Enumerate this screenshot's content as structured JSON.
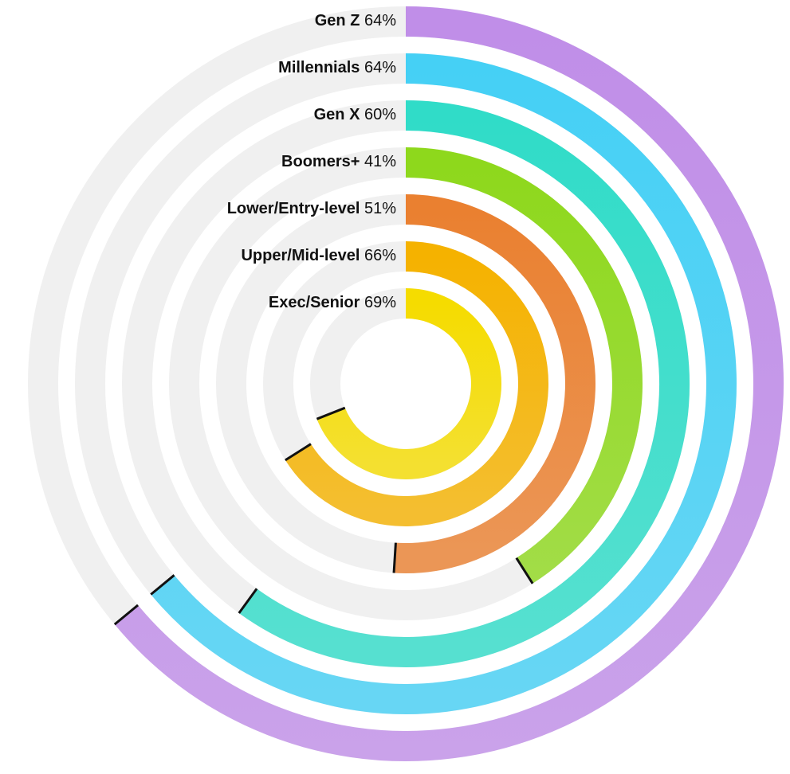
{
  "chart_data": {
    "type": "radial-bar",
    "categories": [
      "Gen Z",
      "Millennials",
      "Gen X",
      "Boomers+",
      "Lower/Entry-level",
      "Upper/Mid-level",
      "Exec/Senior"
    ],
    "values": [
      64,
      64,
      60,
      41,
      51,
      66,
      69
    ],
    "value_labels": [
      "64%",
      "64%",
      "60%",
      "41%",
      "51%",
      "66%",
      "69%"
    ],
    "colors": [
      "#c08ee8",
      "#45d0f5",
      "#30dcc8",
      "#8ed81c",
      "#ea8030",
      "#f5b200",
      "#f5dc00"
    ],
    "ylim": [
      0,
      100
    ]
  }
}
